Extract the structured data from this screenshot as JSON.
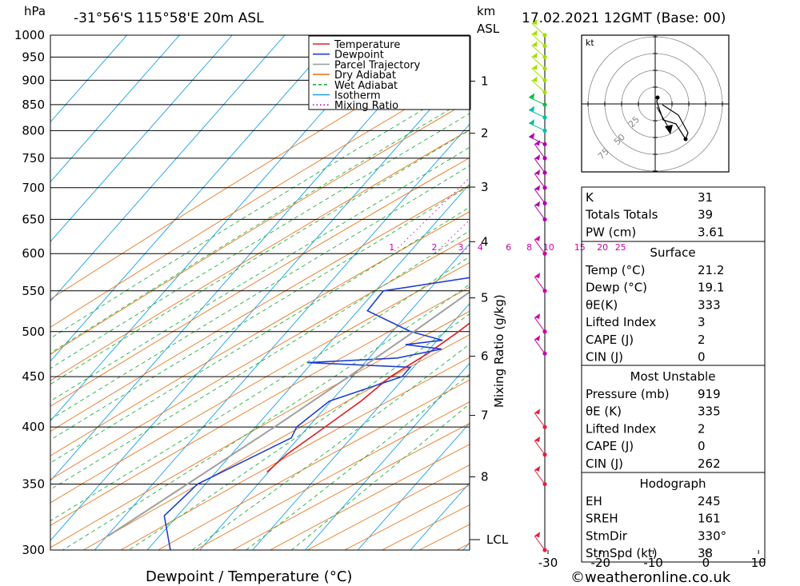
{
  "header": {
    "location": "-31°56'S 115°58'E 20m ASL",
    "datetime": "17.02.2021 12GMT (Base: 00)",
    "hpa_label": "hPa",
    "km_label": "km",
    "asl_label": "ASL",
    "mixing_ratio_axis_label": "Mixing Ratio (g/kg)",
    "lcl_label": "LCL"
  },
  "chart_data": {
    "type": "line",
    "subtype": "skew-T log-P diagram",
    "xlabel": "Dewpoint / Temperature (°C)",
    "ylabel": "hPa",
    "y_scale": "log",
    "ylim": [
      1000,
      300
    ],
    "pressure_ticks": [
      300,
      350,
      400,
      450,
      500,
      550,
      600,
      650,
      700,
      750,
      800,
      850,
      900,
      950,
      1000
    ],
    "temperature_ticks": [
      -30,
      -20,
      -10,
      0,
      10,
      20,
      30,
      40
    ],
    "height_ticks_km": [
      1,
      2,
      3,
      4,
      5,
      6,
      7,
      8
    ],
    "height_tick_pressures": [
      898,
      795,
      701,
      617,
      541,
      472,
      411,
      356
    ],
    "mixing_ratio_labels": [
      "1",
      "2",
      "3",
      "4",
      "6",
      "8",
      "10",
      "15",
      "20",
      "25"
    ],
    "mixing_ratio_values": [
      1,
      2,
      3,
      4,
      6,
      8,
      10,
      15,
      20,
      25
    ],
    "legend": [
      "Temperature",
      "Dewpoint",
      "Parcel Trajectory",
      "Dry Adiabat",
      "Wet Adiabat",
      "Isotherm",
      "Mixing Ratio"
    ],
    "grid": true,
    "series": [
      {
        "name": "Temperature",
        "color": "#e02020",
        "points": [
          [
            1000,
            21.2
          ],
          [
            975,
            20.1
          ],
          [
            950,
            19.4
          ],
          [
            925,
            22.1
          ],
          [
            900,
            22.5
          ],
          [
            850,
            21.6
          ],
          [
            800,
            19.3
          ],
          [
            750,
            16.8
          ],
          [
            700,
            13.5
          ],
          [
            650,
            10.1
          ],
          [
            600,
            7.8
          ],
          [
            575,
            6.2
          ],
          [
            550,
            4.9
          ],
          [
            525,
            4.3
          ],
          [
            500,
            2.6
          ],
          [
            475,
            0.4
          ],
          [
            450,
            -2.8
          ],
          [
            425,
            -4.3
          ],
          [
            400,
            -6.8
          ],
          [
            375,
            -9.5
          ],
          [
            360,
            -10.3
          ]
        ]
      },
      {
        "name": "Dewpoint",
        "color": "#2040d0",
        "points": [
          [
            1000,
            19.1
          ],
          [
            975,
            18.8
          ],
          [
            950,
            17.5
          ],
          [
            930,
            16.6
          ],
          [
            915,
            15.1
          ],
          [
            900,
            11.8
          ],
          [
            850,
            11.2
          ],
          [
            800,
            7.4
          ],
          [
            775,
            6.7
          ],
          [
            750,
            7.6
          ],
          [
            700,
            13.2
          ],
          [
            650,
            9.7
          ],
          [
            610,
            5.2
          ],
          [
            575,
            2.0
          ],
          [
            550,
            -18.5
          ],
          [
            525,
            -18.2
          ],
          [
            500,
            -6.5
          ],
          [
            490,
            1.0
          ],
          [
            485,
            -5.3
          ],
          [
            480,
            2.3
          ],
          [
            470,
            -4.7
          ],
          [
            465,
            -20.9
          ],
          [
            460,
            -0.6
          ],
          [
            450,
            -0.6
          ],
          [
            425,
            -10.3
          ],
          [
            400,
            -12.2
          ],
          [
            390,
            -11.4
          ],
          [
            350,
            -21.5
          ],
          [
            325,
            -22.5
          ],
          [
            300,
            -15.6
          ]
        ]
      },
      {
        "name": "Parcel Trajectory",
        "color": "#a0a0a0",
        "points": [
          [
            1000,
            21.2
          ],
          [
            975,
            19.1
          ],
          [
            950,
            18.2
          ],
          [
            900,
            16.5
          ],
          [
            850,
            14.6
          ],
          [
            800,
            12.5
          ],
          [
            750,
            10.2
          ],
          [
            700,
            7.7
          ],
          [
            650,
            4.9
          ],
          [
            600,
            1.8
          ],
          [
            550,
            -1.8
          ],
          [
            500,
            -5.9
          ],
          [
            450,
            -10.7
          ],
          [
            400,
            -16.4
          ],
          [
            350,
            -23.4
          ],
          [
            310,
            -29.8
          ]
        ]
      }
    ]
  },
  "wind_profile": {
    "pressures": [
      1000,
      975,
      950,
      925,
      900,
      875,
      850,
      825,
      800,
      775,
      750,
      725,
      700,
      675,
      650,
      600,
      550,
      500,
      475,
      400,
      375,
      350,
      300
    ],
    "colors": [
      "#a0e000",
      "#a0e000",
      "#a0e000",
      "#a0e000",
      "#a0e000",
      "#a0e000",
      "#00c040",
      "#00c0a0",
      "#00c0a0",
      "#b000b0",
      "#b000b0",
      "#b000b0",
      "#b000b0",
      "#b000b0",
      "#b000b0",
      "#d000a0",
      "#d000a0",
      "#d000a0",
      "#d000a0",
      "#e02040",
      "#e02040",
      "#e02040",
      "#e02040"
    ]
  },
  "hodograph": {
    "unit_label": "kt",
    "ring_labels": [
      "25",
      "50",
      "75"
    ]
  },
  "indices": {
    "block1": [
      {
        "label": "K",
        "value": "31"
      },
      {
        "label": "Totals Totals",
        "value": "39"
      },
      {
        "label": "PW (cm)",
        "value": "3.61"
      }
    ],
    "surface_title": "Surface",
    "surface": [
      {
        "label": "Temp (°C)",
        "value": "21.2"
      },
      {
        "label": "Dewp (°C)",
        "value": "19.1"
      },
      {
        "label": "θE(K)",
        "value": "333"
      },
      {
        "label": "Lifted Index",
        "value": "3"
      },
      {
        "label": "CAPE (J)",
        "value": "2"
      },
      {
        "label": "CIN (J)",
        "value": "0"
      }
    ],
    "unstable_title": "Most Unstable",
    "unstable": [
      {
        "label": "Pressure (mb)",
        "value": "919"
      },
      {
        "label": "θE (K)",
        "value": "335"
      },
      {
        "label": "Lifted Index",
        "value": "2"
      },
      {
        "label": "CAPE (J)",
        "value": "0"
      },
      {
        "label": "CIN (J)",
        "value": "262"
      }
    ],
    "hodo_title": "Hodograph",
    "hodo": [
      {
        "label": "EH",
        "value": "245"
      },
      {
        "label": "SREH",
        "value": "161"
      },
      {
        "label": "StmDir",
        "value": "330°"
      },
      {
        "label": "StmSpd (kt)",
        "value": "38"
      }
    ]
  },
  "footer": {
    "copyright": "©weatheronline.co.uk"
  }
}
